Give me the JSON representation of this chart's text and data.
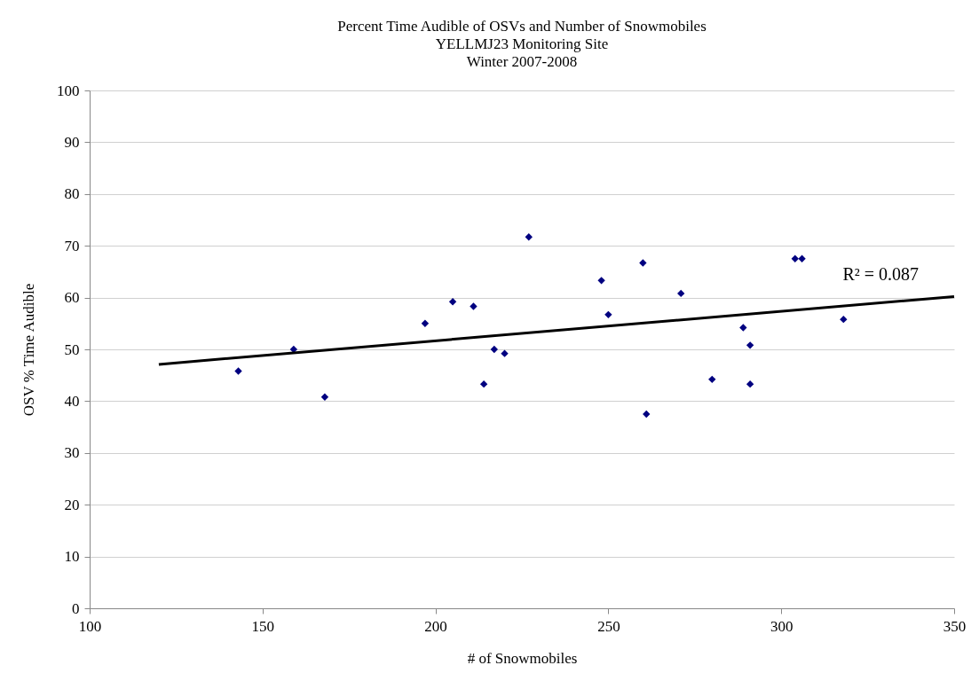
{
  "chart_data": {
    "type": "scatter",
    "title": "Percent Time Audible of OSVs and Number of Snowmobiles\nYELLMJ23 Monitoring Site\nWinter 2007-2008",
    "xlabel": "# of Snowmobiles",
    "ylabel": "OSV % Time Audible",
    "series": [
      {
        "color": "#000080",
        "marker": "diamond",
        "x": [
          143,
          159,
          168,
          197,
          205,
          211,
          214,
          217,
          220,
          227,
          248,
          250,
          260,
          261,
          271,
          280,
          289,
          291,
          291,
          304,
          306,
          318
        ],
        "values": [
          45.8,
          50.0,
          40.8,
          55.0,
          59.2,
          58.3,
          43.3,
          50.0,
          49.2,
          71.7,
          63.3,
          56.7,
          66.7,
          37.5,
          60.8,
          44.2,
          54.2,
          50.8,
          43.3,
          67.5,
          67.5,
          55.8
        ]
      },
      {
        "type": "line",
        "marker": "none",
        "color": "#000000",
        "x": [
          120,
          350
        ],
        "values": [
          47.1,
          60.2
        ]
      }
    ],
    "xlim": [
      100,
      350
    ],
    "xticks": [
      100,
      150,
      200,
      250,
      300,
      350
    ],
    "ylim": [
      0,
      100
    ],
    "yticks": [
      0,
      10,
      20,
      30,
      40,
      50,
      60,
      70,
      80,
      90,
      100
    ],
    "grid": "y",
    "line_style": "solid",
    "annotations": [
      "R² = 0.087"
    ]
  }
}
